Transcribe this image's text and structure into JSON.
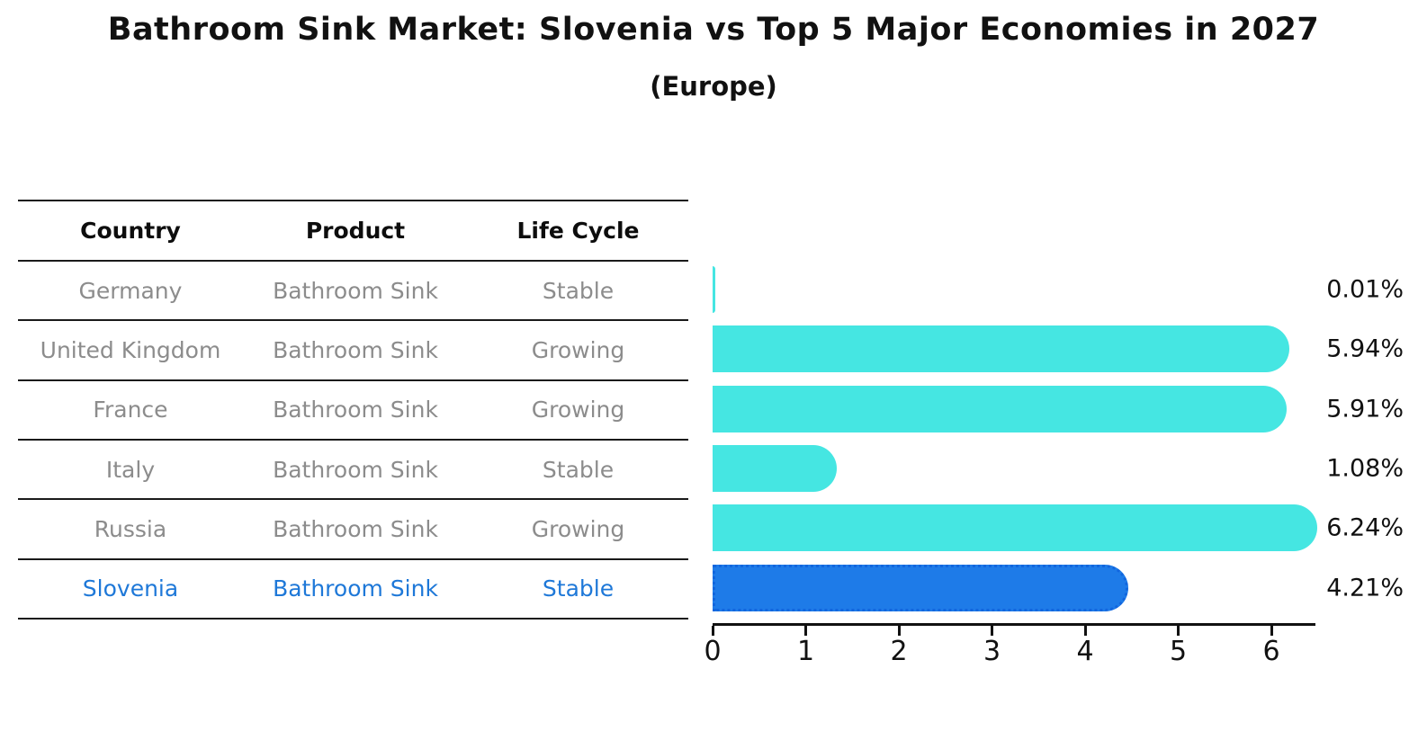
{
  "title": "Bathroom Sink Market: Slovenia vs Top 5 Major Economies in 2027",
  "subtitle": "(Europe)",
  "table": {
    "headers": [
      "Country",
      "Product",
      "Life Cycle"
    ],
    "rows": [
      {
        "country": "Germany",
        "product": "Bathroom Sink",
        "life_cycle": "Stable",
        "highlight": false
      },
      {
        "country": "United Kingdom",
        "product": "Bathroom Sink",
        "life_cycle": "Growing",
        "highlight": false
      },
      {
        "country": "France",
        "product": "Bathroom Sink",
        "life_cycle": "Growing",
        "highlight": false
      },
      {
        "country": "Italy",
        "product": "Bathroom Sink",
        "life_cycle": "Stable",
        "highlight": false
      },
      {
        "country": "Russia",
        "product": "Bathroom Sink",
        "life_cycle": "Growing",
        "highlight": false
      },
      {
        "country": "Slovenia",
        "product": "Bathroom Sink",
        "life_cycle": "Stable",
        "highlight": true
      }
    ]
  },
  "chart_data": {
    "type": "bar",
    "orientation": "horizontal",
    "title": "Bathroom Sink Market: Slovenia vs Top 5 Major Economies in 2027",
    "subtitle": "(Europe)",
    "categories": [
      "Germany",
      "United Kingdom",
      "France",
      "Italy",
      "Russia",
      "Slovenia"
    ],
    "values": [
      0.01,
      5.94,
      5.91,
      1.08,
      6.24,
      4.21
    ],
    "value_labels": [
      "0.01%",
      "5.94%",
      "5.91%",
      "1.08%",
      "6.24%",
      "4.21%"
    ],
    "xlabel": "",
    "ylabel": "",
    "xticks": [
      0,
      1,
      2,
      3,
      4,
      5,
      6
    ],
    "xlim": [
      0,
      6.47
    ],
    "grid": false,
    "legend": false,
    "highlight_index": 5,
    "bar_color": "#45e6e2",
    "highlight_bar_color": "#1e7be8",
    "highlight_border_color": "#1266de",
    "highlight_text_color": "#1e78d8",
    "text_color": "#111111",
    "muted_text_color": "#8c8c8c"
  }
}
